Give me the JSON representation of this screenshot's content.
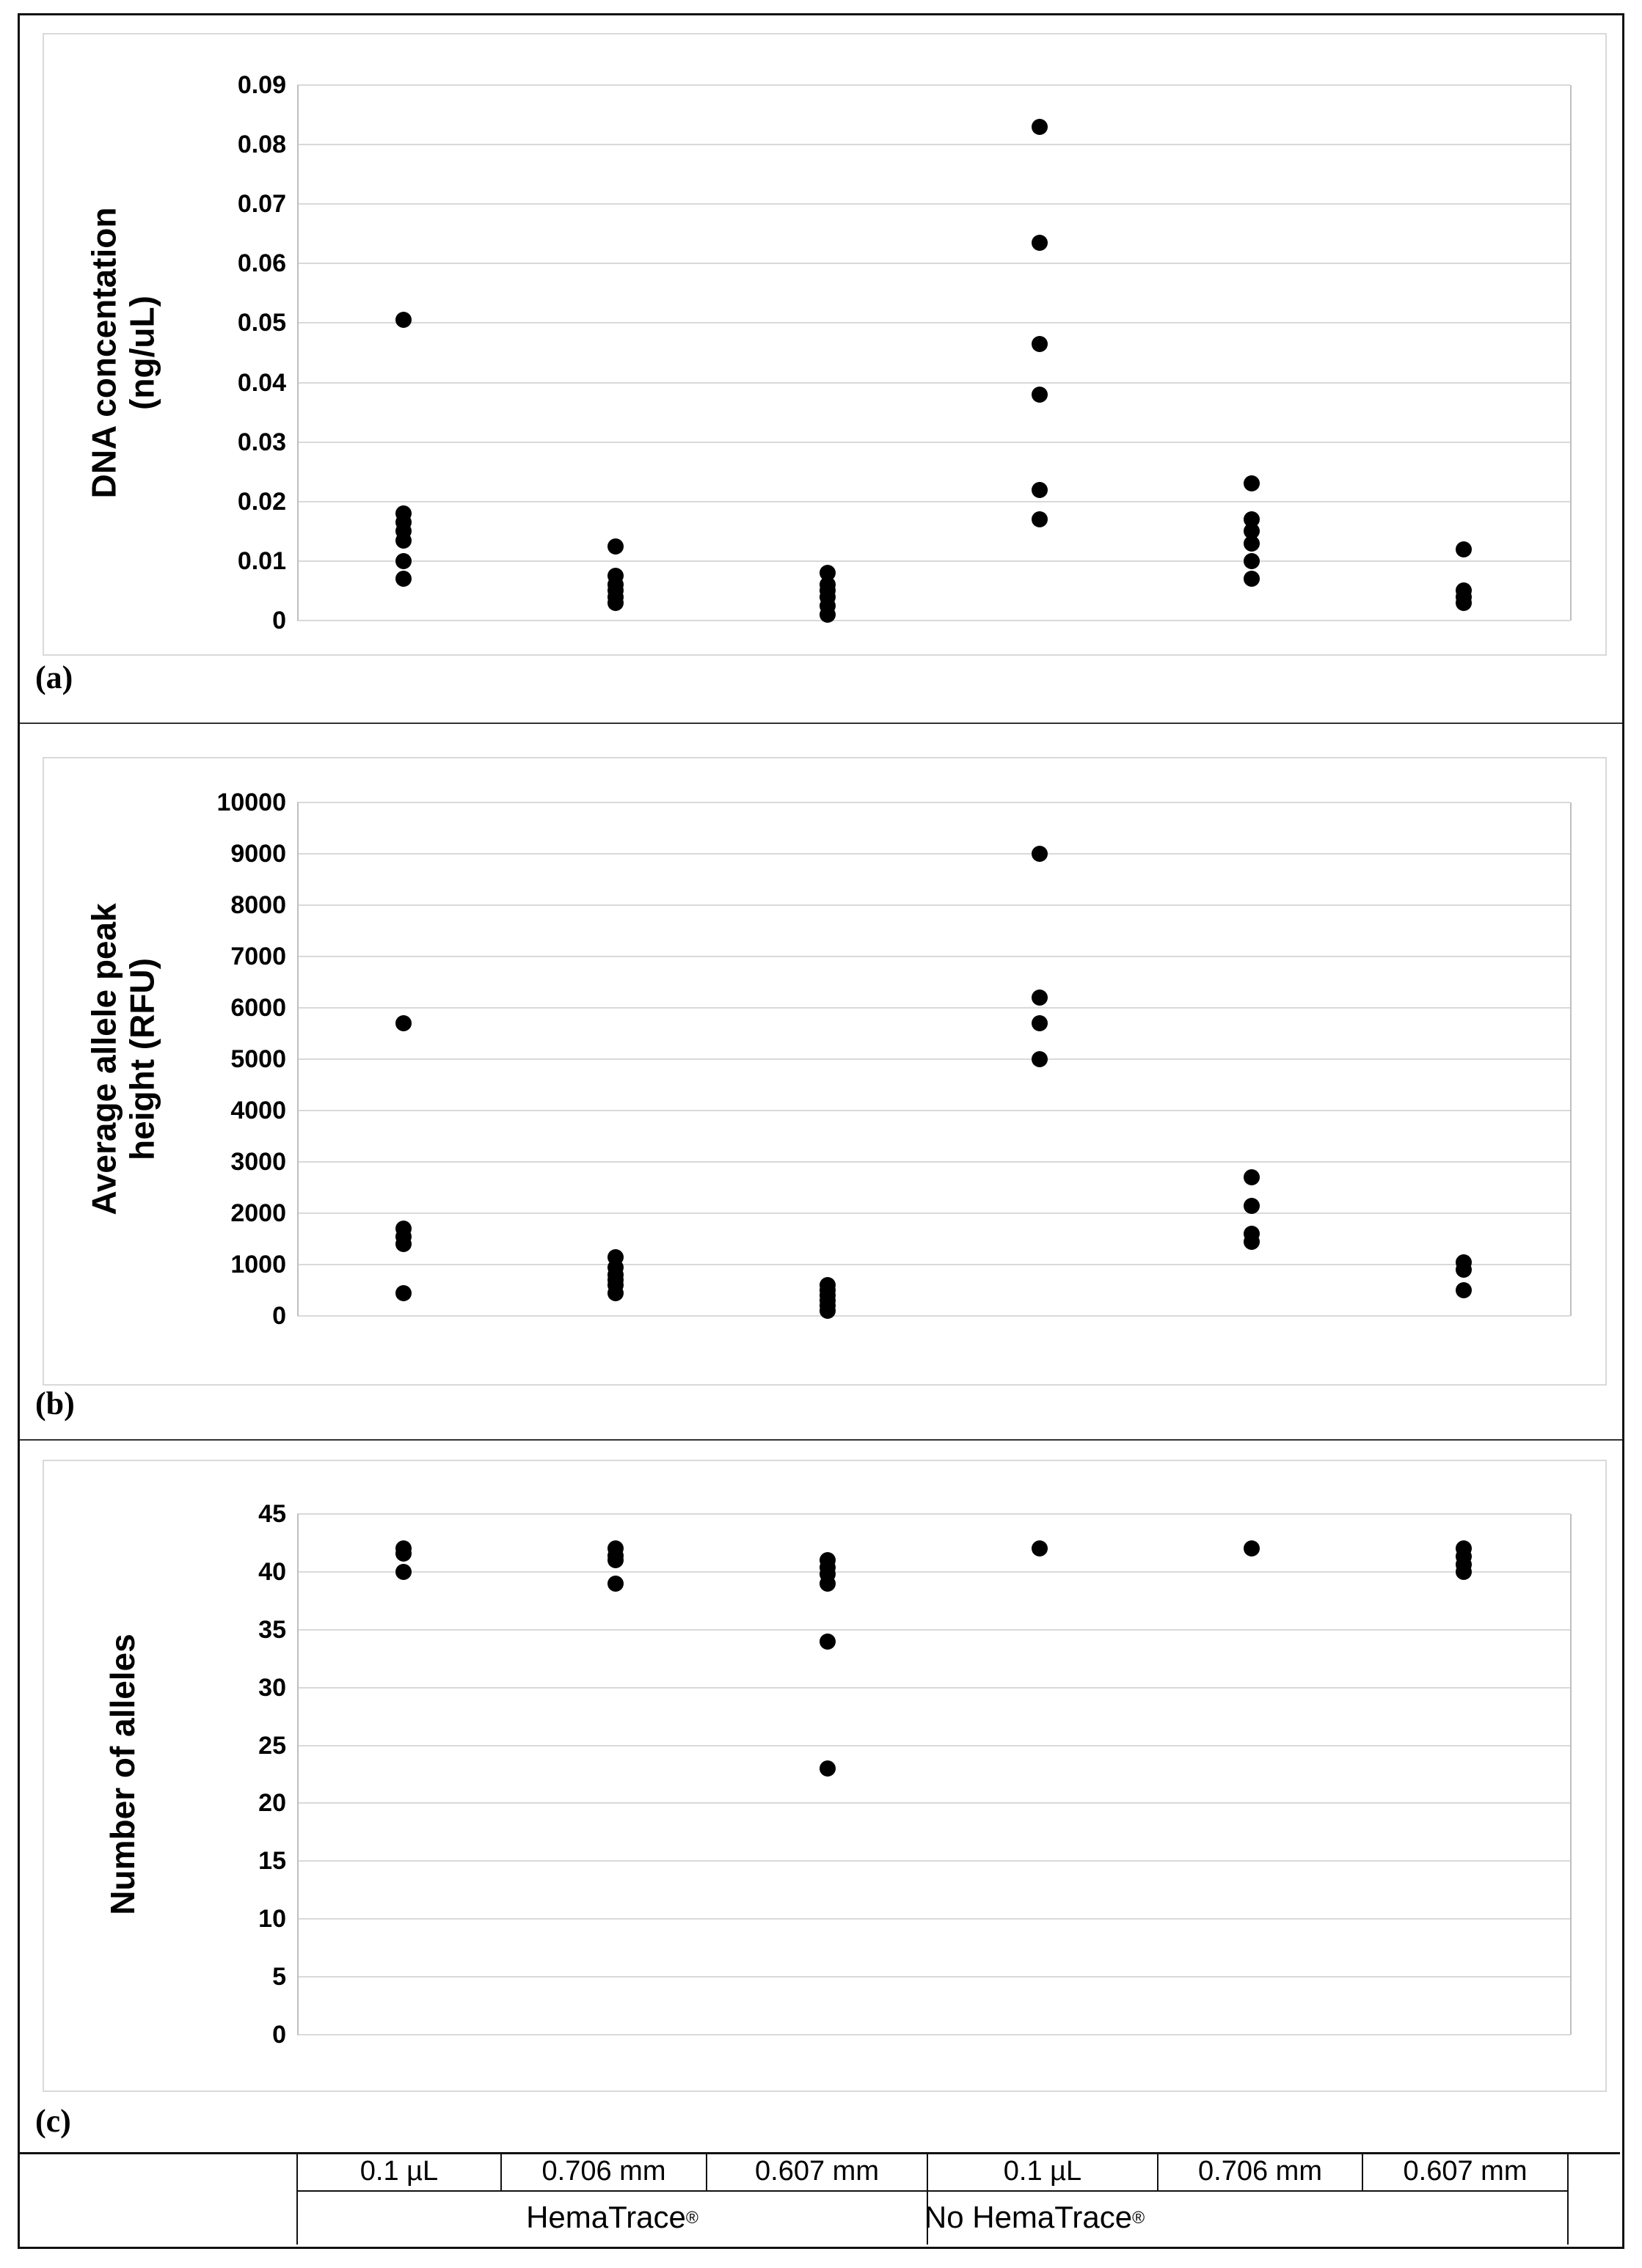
{
  "chart_data": [
    {
      "type": "scatter",
      "panel_label": "(a)",
      "ylabel": "DNA concentation (ng/uL)",
      "ylabel_lines": [
        "DNA concentation",
        "(ng/uL)"
      ],
      "ylim": [
        0,
        0.09
      ],
      "ytick_step": 0.01,
      "ytick_labels": [
        "0.09",
        "0.08",
        "0.07",
        "0.06",
        "0.05",
        "0.04",
        "0.03",
        "0.02",
        "0.01",
        "0"
      ],
      "grid": true,
      "marker_color": "#000000",
      "categories": [
        "0.1 µL",
        "0.706 mm",
        "0.607 mm",
        "0.1 µL",
        "0.706 mm",
        "0.607 mm"
      ],
      "groups": [
        {
          "condition": "HemaTrace®",
          "sample": "0.1 µL",
          "values": [
            0.0505,
            0.018,
            0.0165,
            0.015,
            0.0135,
            0.01,
            0.007
          ]
        },
        {
          "condition": "HemaTrace®",
          "sample": "0.706 mm",
          "values": [
            0.0125,
            0.0075,
            0.006,
            0.005,
            0.004,
            0.003
          ]
        },
        {
          "condition": "HemaTrace®",
          "sample": "0.607 mm",
          "values": [
            0.008,
            0.006,
            0.005,
            0.004,
            0.0025,
            0.001
          ]
        },
        {
          "condition": "No HemaTrace®",
          "sample": "0.1 µL",
          "values": [
            0.083,
            0.0635,
            0.0465,
            0.038,
            0.022,
            0.017
          ]
        },
        {
          "condition": "No HemaTrace®",
          "sample": "0.706 mm",
          "values": [
            0.023,
            0.017,
            0.015,
            0.013,
            0.01,
            0.007
          ]
        },
        {
          "condition": "No HemaTrace®",
          "sample": "0.607 mm",
          "values": [
            0.012,
            0.005,
            0.004,
            0.003
          ]
        }
      ]
    },
    {
      "type": "scatter",
      "panel_label": "(b)",
      "ylabel": "Average allele peak height (RFU)",
      "ylabel_lines": [
        "Average allele peak",
        "height (RFU)"
      ],
      "ylim": [
        0,
        10000
      ],
      "ytick_step": 1000,
      "ytick_labels": [
        "10000",
        "9000",
        "8000",
        "7000",
        "6000",
        "5000",
        "4000",
        "3000",
        "2000",
        "1000",
        "0"
      ],
      "grid": true,
      "marker_color": "#000000",
      "categories": [
        "0.1 µL",
        "0.706 mm",
        "0.607 mm",
        "0.1 µL",
        "0.706 mm",
        "0.607 mm"
      ],
      "groups": [
        {
          "condition": "HemaTrace®",
          "sample": "0.1 µL",
          "values": [
            5700,
            1700,
            1550,
            1400,
            450
          ]
        },
        {
          "condition": "HemaTrace®",
          "sample": "0.706 mm",
          "values": [
            1150,
            950,
            800,
            700,
            600,
            450
          ]
        },
        {
          "condition": "HemaTrace®",
          "sample": "0.607 mm",
          "values": [
            600,
            500,
            400,
            300,
            200,
            100
          ]
        },
        {
          "condition": "No HemaTrace®",
          "sample": "0.1 µL",
          "values": [
            9000,
            6200,
            5700,
            5000
          ]
        },
        {
          "condition": "No HemaTrace®",
          "sample": "0.706 mm",
          "values": [
            2700,
            2150,
            1600,
            1450
          ]
        },
        {
          "condition": "No HemaTrace®",
          "sample": "0.607 mm",
          "values": [
            1050,
            900,
            500
          ]
        }
      ]
    },
    {
      "type": "scatter",
      "panel_label": "(c)",
      "ylabel": "Number of alleles",
      "ylabel_lines": [
        "Number of alleles"
      ],
      "ylim": [
        0,
        45
      ],
      "ytick_step": 5,
      "ytick_labels": [
        "45",
        "40",
        "35",
        "30",
        "25",
        "20",
        "15",
        "10",
        "5",
        "0"
      ],
      "grid": true,
      "marker_color": "#000000",
      "categories": [
        "0.1 µL",
        "0.706 mm",
        "0.607 mm",
        "0.1 µL",
        "0.706 mm",
        "0.607 mm"
      ],
      "groups": [
        {
          "condition": "HemaTrace®",
          "sample": "0.1 µL",
          "values": [
            42,
            41.6,
            40
          ]
        },
        {
          "condition": "HemaTrace®",
          "sample": "0.706 mm",
          "values": [
            42,
            41.4,
            41,
            39
          ]
        },
        {
          "condition": "HemaTrace®",
          "sample": "0.607 mm",
          "values": [
            41,
            40.4,
            39.8,
            39,
            34,
            23
          ]
        },
        {
          "condition": "No HemaTrace®",
          "sample": "0.1 µL",
          "values": [
            42
          ]
        },
        {
          "condition": "No HemaTrace®",
          "sample": "0.706 mm",
          "values": [
            42
          ]
        },
        {
          "condition": "No HemaTrace®",
          "sample": "0.607 mm",
          "values": [
            42,
            41.3,
            40.6,
            40
          ]
        }
      ]
    }
  ],
  "table": {
    "row1": [
      "",
      "0.1 µL",
      "0.706 mm",
      "0.607 mm",
      "0.1 µL",
      "0.706 mm",
      "0.607 mm",
      ""
    ],
    "row2": [
      "",
      "HemaTrace®",
      "No HemaTrace®",
      ""
    ]
  },
  "colors": {
    "marker": "#000000",
    "gridline": "#d9d9d9",
    "axis_frame": "#bfbfbf",
    "border": "#111111"
  }
}
